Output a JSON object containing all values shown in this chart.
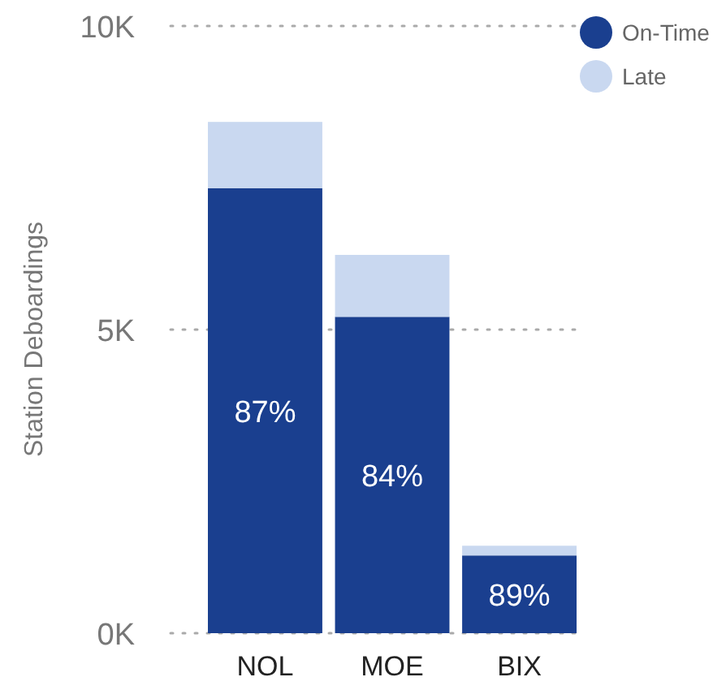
{
  "chart_data": {
    "type": "bar",
    "stacked": true,
    "ylabel": "Station Deboardings",
    "categories": [
      "NOL",
      "MOE",
      "BIX"
    ],
    "series": [
      {
        "name": "On-Time",
        "color": "#1a3f8f",
        "values": [
          7.33,
          5.21,
          1.28
        ]
      },
      {
        "name": "Late",
        "color": "#c9d8f0",
        "values": [
          1.09,
          1.02,
          0.16
        ]
      }
    ],
    "ylim": [
      0,
      10
    ],
    "yticks": [
      {
        "value": 0,
        "label": "0K"
      },
      {
        "value": 5,
        "label": "5K"
      },
      {
        "value": 10,
        "label": "10K"
      }
    ],
    "grid": "y",
    "legend": "top right",
    "annotations": [
      "87%",
      "84%",
      "89%"
    ]
  }
}
